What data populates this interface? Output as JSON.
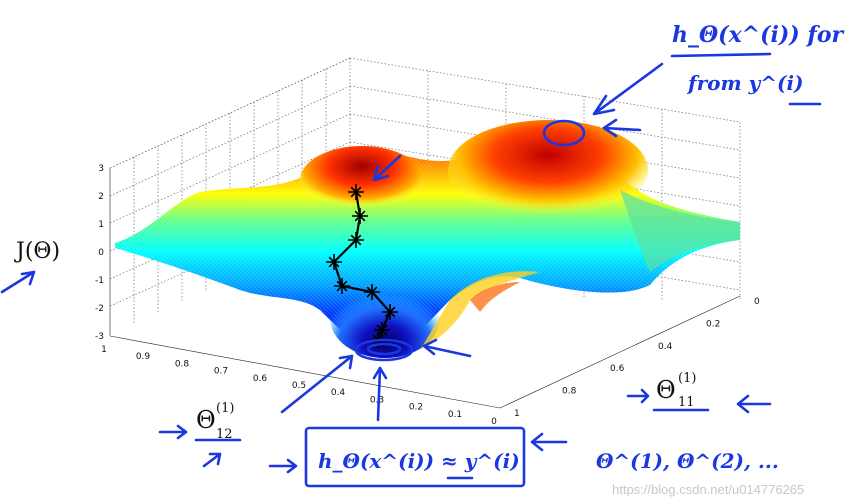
{
  "chart_data": {
    "type": "surface",
    "zlabel": "J(Θ)",
    "xlabel": "Θ_12^(1)",
    "ylabel": "Θ_11^(1)",
    "zlim": [
      -3,
      3
    ],
    "z_ticks": [
      "3",
      "2",
      "1",
      "0",
      "-1",
      "-2",
      "-3"
    ],
    "x_ticks": [
      "1",
      "0.9",
      "0.8",
      "0.7",
      "0.6",
      "0.5",
      "0.4",
      "0.3",
      "0.2",
      "0.1",
      "0"
    ],
    "y_ticks": [
      "0",
      "0.2",
      "0.4",
      "0.6",
      "0.8",
      "1"
    ],
    "grid": true,
    "colormap": "jet",
    "descent_path": {
      "x": [
        0.68,
        0.7,
        0.72,
        0.74,
        0.72,
        0.7,
        0.66,
        0.62,
        0.6
      ],
      "y": [
        0.22,
        0.25,
        0.28,
        0.33,
        0.38,
        0.43,
        0.5,
        0.57,
        0.6
      ],
      "marker": "star",
      "color": "#000000"
    }
  },
  "annotations": {
    "top_numerator": "h_Θ(x^(i)) for",
    "top_denominator": "from y^(i)",
    "bottom_box": "h_Θ(x^(i)) ≈ y^(i)",
    "theta_list": "Θ^(1), Θ^(2), ..."
  },
  "labels": {
    "z_axis": "J(Θ)",
    "theta12": "Θ",
    "theta12_sub": "12",
    "theta12_sup": "(1)",
    "theta11": "Θ",
    "theta11_sub": "11",
    "theta11_sup": "(1)"
  },
  "watermark": "https://blog.csdn.net/u014776265",
  "colors": {
    "ink": "#1a37e0",
    "path": "#000000"
  }
}
